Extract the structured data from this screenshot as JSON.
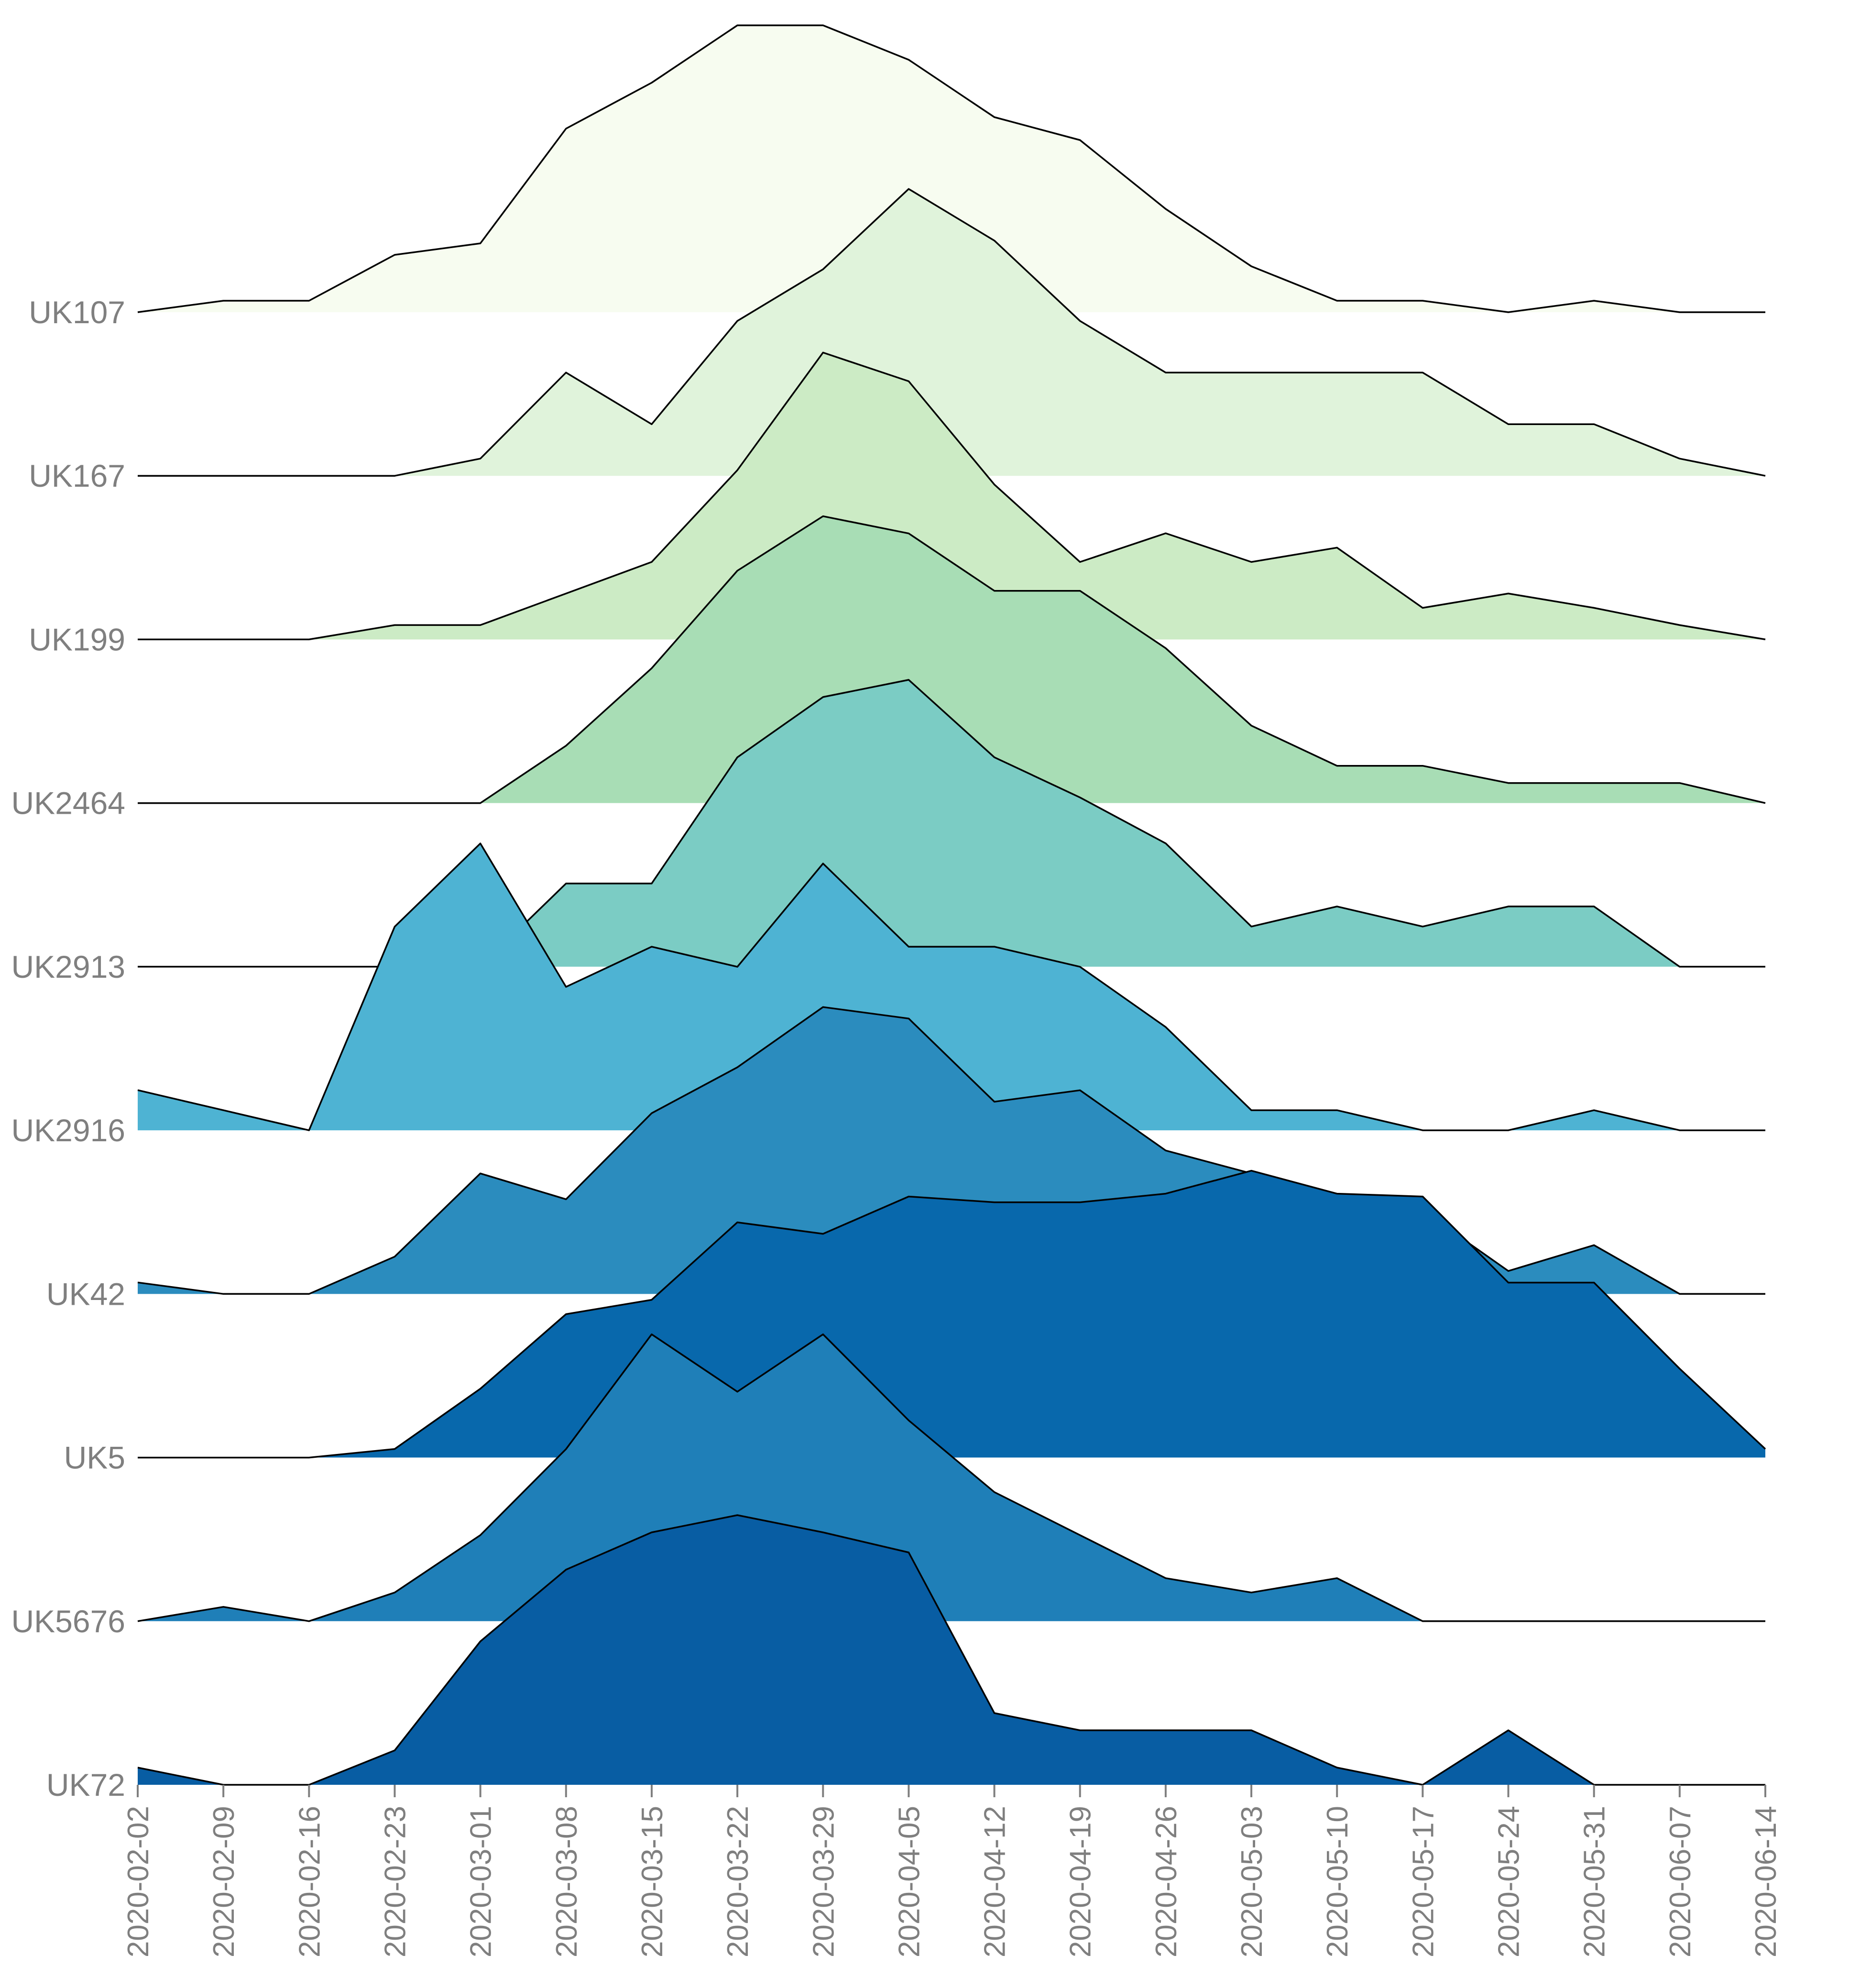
{
  "chart_data": {
    "type": "area",
    "subtype": "ridgeline",
    "title": "",
    "xlabel": "",
    "ylabel": "",
    "x": [
      "2020-02-02",
      "2020-02-09",
      "2020-02-16",
      "2020-02-23",
      "2020-03-01",
      "2020-03-08",
      "2020-03-15",
      "2020-03-22",
      "2020-03-29",
      "2020-04-05",
      "2020-04-12",
      "2020-04-19",
      "2020-04-26",
      "2020-05-03",
      "2020-05-10",
      "2020-05-17",
      "2020-05-24",
      "2020-05-31",
      "2020-06-07",
      "2020-06-14"
    ],
    "grid": false,
    "legend": "none",
    "series": [
      {
        "name": "UK107",
        "color": "#f7fcf0",
        "values": [
          0.0,
          0.04,
          0.04,
          0.2,
          0.24,
          0.64,
          0.8,
          1.0,
          1.0,
          0.88,
          0.68,
          0.6,
          0.36,
          0.16,
          0.04,
          0.04,
          0.0,
          0.04,
          0.0,
          0.0
        ]
      },
      {
        "name": "UK167",
        "color": "#e0f3db",
        "values": [
          0.0,
          0.0,
          0.0,
          0.0,
          0.06,
          0.36,
          0.18,
          0.54,
          0.72,
          1.0,
          0.82,
          0.54,
          0.36,
          0.36,
          0.36,
          0.36,
          0.18,
          0.18,
          0.06,
          0.0
        ]
      },
      {
        "name": "UK199",
        "color": "#ccebc5",
        "values": [
          0.0,
          0.0,
          0.0,
          0.05,
          0.05,
          0.16,
          0.27,
          0.59,
          1.0,
          0.9,
          0.54,
          0.27,
          0.37,
          0.27,
          0.32,
          0.11,
          0.16,
          0.11,
          0.05,
          0.0
        ]
      },
      {
        "name": "UK2464",
        "color": "#a8ddb5",
        "values": [
          0.0,
          0.0,
          0.0,
          0.0,
          0.0,
          0.2,
          0.47,
          0.81,
          1.0,
          0.94,
          0.74,
          0.74,
          0.54,
          0.27,
          0.13,
          0.13,
          0.07,
          0.07,
          0.07,
          0.0
        ]
      },
      {
        "name": "UK2913",
        "color": "#7bccc4",
        "values": [
          0.0,
          0.0,
          0.0,
          0.0,
          0.0,
          0.29,
          0.29,
          0.73,
          0.94,
          1.0,
          0.73,
          0.59,
          0.43,
          0.14,
          0.21,
          0.14,
          0.21,
          0.21,
          0.0,
          0.0
        ]
      },
      {
        "name": "UK2916",
        "color": "#4eb3d3",
        "values": [
          0.14,
          0.07,
          0.0,
          0.71,
          1.0,
          0.5,
          0.64,
          0.57,
          0.93,
          0.64,
          0.64,
          0.57,
          0.36,
          0.07,
          0.07,
          0.0,
          0.0,
          0.07,
          0.0,
          0.0
        ]
      },
      {
        "name": "UK42",
        "color": "#2b8cbe",
        "values": [
          0.04,
          0.0,
          0.0,
          0.13,
          0.42,
          0.33,
          0.63,
          0.79,
          1.0,
          0.96,
          0.67,
          0.71,
          0.5,
          0.42,
          0.33,
          0.29,
          0.08,
          0.17,
          0.0,
          0.0
        ]
      },
      {
        "name": "UK5",
        "color": "#0868ac",
        "values": [
          0.0,
          0.0,
          0.0,
          0.03,
          0.24,
          0.5,
          0.55,
          0.82,
          0.78,
          0.91,
          0.89,
          0.89,
          0.92,
          1.0,
          0.92,
          0.91,
          0.61,
          0.61,
          0.31,
          0.03
        ]
      },
      {
        "name": "UK5676",
        "color": "#1f7fb8",
        "values": [
          0.0,
          0.05,
          0.0,
          0.1,
          0.3,
          0.6,
          1.0,
          0.8,
          1.0,
          0.7,
          0.45,
          0.3,
          0.15,
          0.1,
          0.15,
          0.0,
          0.0,
          0.0,
          0.0,
          0.0
        ]
      },
      {
        "name": "UK72",
        "color": "#085da3",
        "values": [
          0.06,
          0.0,
          0.0,
          0.12,
          0.5,
          0.75,
          0.88,
          0.94,
          0.88,
          0.81,
          0.25,
          0.19,
          0.19,
          0.19,
          0.06,
          0.0,
          0.19,
          0.0,
          0.0,
          0.0
        ]
      }
    ]
  }
}
